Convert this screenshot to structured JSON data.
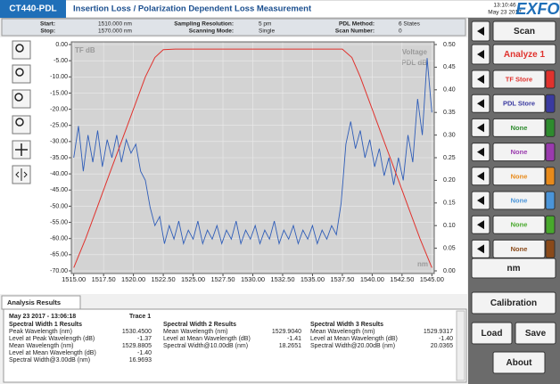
{
  "header": {
    "product": "CT440-PDL",
    "title": "Insertion Loss / Polarization Dependent Loss Measurement",
    "time": "13:10:46",
    "date": "May 23 2017",
    "logo": "EXFO"
  },
  "info": [
    {
      "label": "Start:",
      "value": "1510.000 nm"
    },
    {
      "label": "Stop:",
      "value": "1570.000 nm"
    },
    {
      "label": "Sampling Resolution:",
      "value": "5 pm"
    },
    {
      "label": "Scanning Mode:",
      "value": "Single"
    },
    {
      "label": "PDL Method:",
      "value": "6 States"
    },
    {
      "label": "Scan Number:",
      "value": "0"
    }
  ],
  "chart_data": {
    "type": "line",
    "xlabel": "nm",
    "y2label": "Voltage",
    "grid": true,
    "xlim": [
      1514.8,
      1545.2
    ],
    "ylim": [
      -70,
      0
    ],
    "y2lim": [
      0,
      0.5
    ],
    "xticks": [
      {
        "value": 1515,
        "label": "1515.00"
      },
      {
        "value": 1517.5,
        "label": "1517.50"
      },
      {
        "value": 1520,
        "label": "1520.00"
      },
      {
        "value": 1522.5,
        "label": "1522.50"
      },
      {
        "value": 1525,
        "label": "1525.00"
      },
      {
        "value": 1527.5,
        "label": "1527.50"
      },
      {
        "value": 1530,
        "label": "1530.00"
      },
      {
        "value": 1532.5,
        "label": "1532.50"
      },
      {
        "value": 1535,
        "label": "1535.00"
      },
      {
        "value": 1537.5,
        "label": "1537.50"
      },
      {
        "value": 1540,
        "label": "1540.00"
      },
      {
        "value": 1542.5,
        "label": "1542.50"
      },
      {
        "value": 1545,
        "label": "1545.00"
      }
    ],
    "yticks": [
      {
        "value": 0,
        "label": "0.00"
      },
      {
        "value": -5,
        "label": "-5.00"
      },
      {
        "value": -10,
        "label": "-10.00"
      },
      {
        "value": -15,
        "label": "-15.00"
      },
      {
        "value": -20,
        "label": "-20.00"
      },
      {
        "value": -25,
        "label": "-25.00"
      },
      {
        "value": -30,
        "label": "-30.00"
      },
      {
        "value": -35,
        "label": "-35.00"
      },
      {
        "value": -40,
        "label": "-40.00"
      },
      {
        "value": -45,
        "label": "-45.00"
      },
      {
        "value": -50,
        "label": "-50.00"
      },
      {
        "value": -55,
        "label": "-55.00"
      },
      {
        "value": -60,
        "label": "-60.00"
      },
      {
        "value": -65,
        "label": "-65.00"
      },
      {
        "value": -70,
        "label": "-70.00"
      }
    ],
    "y2ticks": [
      {
        "value": 0.5,
        "label": "0.50"
      },
      {
        "value": 0.45,
        "label": "0.45"
      },
      {
        "value": 0.4,
        "label": "0.40"
      },
      {
        "value": 0.35,
        "label": "0.35"
      },
      {
        "value": 0.3,
        "label": "0.30"
      },
      {
        "value": 0.25,
        "label": "0.25"
      },
      {
        "value": 0.2,
        "label": "0.20"
      },
      {
        "value": 0.15,
        "label": "0.15"
      },
      {
        "value": 0.1,
        "label": "0.10"
      },
      {
        "value": 0.05,
        "label": "0.05"
      },
      {
        "value": 0,
        "label": "0.00"
      }
    ],
    "series": [
      {
        "name": "TF dB",
        "color": "#e0322d",
        "axis": "y",
        "x": [
          1515,
          1516,
          1517,
          1518,
          1519,
          1520,
          1521,
          1521.8,
          1522.5,
          1523.5,
          1537.5,
          1538.3,
          1539,
          1540,
          1541,
          1542,
          1543,
          1544,
          1545
        ],
        "values": [
          -69,
          -60,
          -50,
          -40,
          -30,
          -20,
          -10,
          -4,
          -1.6,
          -1.4,
          -1.4,
          -4,
          -10,
          -20,
          -30,
          -40,
          -50,
          -60,
          -69
        ]
      },
      {
        "name": "PDL dB",
        "color": "#2f5db8",
        "axis": "y2",
        "x": [
          1515,
          1515.4,
          1515.8,
          1516.2,
          1516.6,
          1517,
          1517.4,
          1517.8,
          1518.2,
          1518.6,
          1519,
          1519.4,
          1519.8,
          1520.2,
          1520.6,
          1521,
          1521.4,
          1521.8,
          1522.2,
          1522.6,
          1523,
          1523.4,
          1523.8,
          1524.2,
          1524.6,
          1525,
          1525.4,
          1525.8,
          1526.2,
          1526.6,
          1527,
          1527.4,
          1527.8,
          1528.2,
          1528.6,
          1529,
          1529.4,
          1529.8,
          1530.2,
          1530.6,
          1531,
          1531.4,
          1531.8,
          1532.2,
          1532.6,
          1533,
          1533.4,
          1533.8,
          1534.2,
          1534.6,
          1535,
          1535.4,
          1535.8,
          1536.2,
          1536.6,
          1537,
          1537.4,
          1537.8,
          1538.2,
          1538.6,
          1539,
          1539.4,
          1539.8,
          1540.2,
          1540.6,
          1541,
          1541.4,
          1541.8,
          1542.2,
          1542.6,
          1543,
          1543.4,
          1543.8,
          1544.2,
          1544.6,
          1545
        ],
        "values": [
          0.25,
          0.32,
          0.22,
          0.3,
          0.24,
          0.31,
          0.23,
          0.29,
          0.25,
          0.3,
          0.24,
          0.29,
          0.26,
          0.28,
          0.22,
          0.2,
          0.14,
          0.1,
          0.12,
          0.06,
          0.1,
          0.07,
          0.11,
          0.06,
          0.09,
          0.07,
          0.11,
          0.06,
          0.09,
          0.07,
          0.1,
          0.06,
          0.09,
          0.07,
          0.11,
          0.06,
          0.09,
          0.07,
          0.1,
          0.06,
          0.09,
          0.07,
          0.11,
          0.06,
          0.09,
          0.07,
          0.1,
          0.06,
          0.09,
          0.07,
          0.1,
          0.06,
          0.09,
          0.07,
          0.1,
          0.08,
          0.15,
          0.28,
          0.33,
          0.27,
          0.31,
          0.25,
          0.29,
          0.23,
          0.27,
          0.21,
          0.25,
          0.19,
          0.25,
          0.2,
          0.3,
          0.24,
          0.38,
          0.3,
          0.47,
          0.35
        ]
      }
    ]
  },
  "sidebar": {
    "scan": "Scan",
    "analyze": {
      "label": "Analyze 1",
      "color": "#e0322d"
    },
    "traces": [
      {
        "label": "TF Store",
        "color": "#e0322d"
      },
      {
        "label": "PDL Store",
        "color": "#3a3aa0"
      },
      {
        "label": "None",
        "color": "#2e8b2e"
      },
      {
        "label": "None",
        "color": "#9a3aae"
      },
      {
        "label": "None",
        "color": "#e88a1a"
      },
      {
        "label": "None",
        "color": "#4a94d8"
      },
      {
        "label": "None",
        "color": "#48a82c"
      },
      {
        "label": "None",
        "color": "#8a4a1a"
      }
    ],
    "unit": "nm",
    "calibration": "Calibration",
    "load": "Load",
    "save": "Save",
    "about": "About"
  },
  "results": {
    "tab": "Analysis Results",
    "timestamp": "May 23 2017 - 13:06:18",
    "trace": "Trace 1",
    "groups": [
      {
        "title": "Spectral Width 1 Results",
        "rows": [
          [
            "Peak Wavelength (nm)",
            "1530.4500"
          ],
          [
            "Level at Peak Wavelength (dB)",
            "-1.37"
          ],
          [
            "Mean Wavelength (nm)",
            "1529.8805"
          ],
          [
            "Level at Mean Wavelength (dB)",
            "-1.40"
          ],
          [
            "Spectral Width@3.00dB (nm)",
            "16.9693"
          ]
        ]
      },
      {
        "title": "Spectral Width 2 Results",
        "rows": [
          [
            "Mean Wavelength (nm)",
            "1529.9040"
          ],
          [
            "Level at Mean Wavelength (dB)",
            "-1.41"
          ],
          [
            "Spectral Width@10.00dB (nm)",
            "18.2651"
          ]
        ]
      },
      {
        "title": "Spectral Width 3 Results",
        "rows": [
          [
            "Mean Wavelength (nm)",
            "1529.9317"
          ],
          [
            "Level at Mean Wavelength (dB)",
            "-1.40"
          ],
          [
            "Spectral Width@20.00dB (nm)",
            "20.0365"
          ]
        ]
      }
    ]
  }
}
